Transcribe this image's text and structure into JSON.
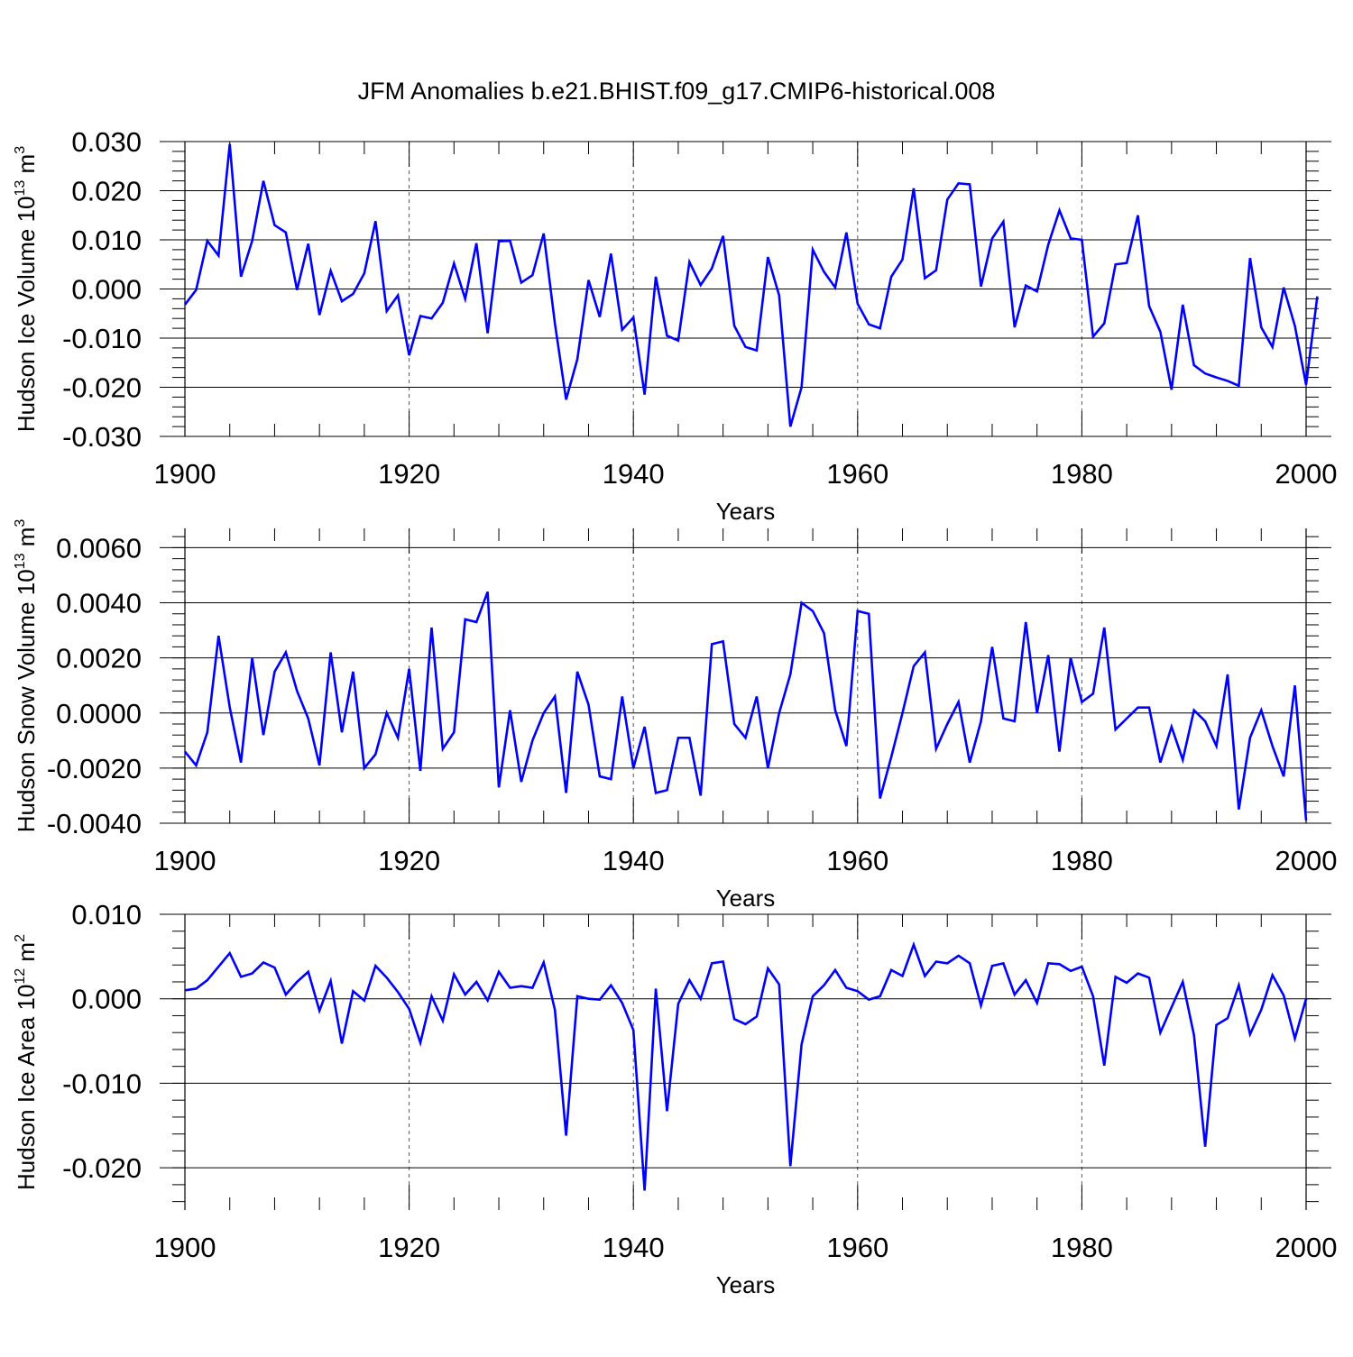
{
  "figure": {
    "title": "JFM Anomalies b.e21.BHIST.f09_g17.CMIP6-historical.008",
    "line_color": "#0000ff",
    "axis_color": "#000000",
    "grid_color": "#555555"
  },
  "chart_data": [
    {
      "type": "line",
      "ylabel": "Hudson Ice Volume 10",
      "ylabel_exp": "13",
      "ylabel_unit": " m",
      "ylabel_unit_exp": "3",
      "xlabel": "Years",
      "xlim": [
        1900,
        2000
      ],
      "ylim": [
        -0.03,
        0.03
      ],
      "x_ticks": [
        1900,
        1920,
        1940,
        1960,
        1980,
        2000
      ],
      "x_tick_labels": [
        "1900",
        "1920",
        "1940",
        "1960",
        "1980",
        "2000"
      ],
      "y_ticks": [
        -0.03,
        -0.02,
        -0.01,
        0.0,
        0.01,
        0.02,
        0.03
      ],
      "y_tick_labels": [
        "-0.030",
        "-0.020",
        "-0.010",
        "0.000",
        "0.010",
        "0.020",
        "0.030"
      ],
      "grid": "dashed vertical at 20-year intervals",
      "x_start": 1900,
      "values": [
        -0.0032,
        -0.0002,
        0.0098,
        0.0068,
        0.0295,
        0.0025,
        0.0098,
        0.022,
        0.013,
        0.0115,
        -0.0002,
        0.0092,
        -0.0053,
        0.0037,
        -0.0025,
        -0.001,
        0.0032,
        0.0138,
        -0.0045,
        -0.0013,
        -0.0135,
        -0.0055,
        -0.006,
        -0.0028,
        0.0052,
        -0.002,
        0.0093,
        -0.009,
        0.0097,
        0.0098,
        0.0013,
        0.0028,
        0.0113,
        -0.007,
        -0.0225,
        -0.0143,
        0.0018,
        -0.0057,
        0.0072,
        -0.0083,
        -0.0058,
        -0.0215,
        0.0025,
        -0.0095,
        -0.0105,
        0.0055,
        0.0008,
        0.0042,
        0.0108,
        -0.0075,
        -0.0118,
        -0.0125,
        0.0065,
        -0.0013,
        -0.028,
        -0.02,
        0.008,
        0.0035,
        0.0003,
        0.0115,
        -0.003,
        -0.0072,
        -0.008,
        0.0025,
        0.006,
        0.0205,
        0.0022,
        0.0038,
        0.0182,
        0.0215,
        0.0213,
        0.0005,
        0.0103,
        0.0137,
        -0.0078,
        0.0007,
        -0.0005,
        0.009,
        0.016,
        0.0103,
        0.01,
        -0.0097,
        -0.007,
        0.005,
        0.0053,
        0.015,
        -0.0035,
        -0.0087,
        -0.0205,
        -0.0032,
        -0.0155,
        -0.0172,
        -0.018,
        -0.0187,
        -0.0197,
        0.0063,
        -0.0078,
        -0.0118,
        0.0003,
        -0.0075,
        -0.0195,
        -0.0015
      ]
    },
    {
      "type": "line",
      "ylabel": "Hudson Snow Volume 10",
      "ylabel_exp": "13",
      "ylabel_unit": " m",
      "ylabel_unit_exp": "3",
      "xlabel": "Years",
      "xlim": [
        1900,
        2000
      ],
      "ylim": [
        -0.004,
        0.0067
      ],
      "x_ticks": [
        1900,
        1920,
        1940,
        1960,
        1980,
        2000
      ],
      "x_tick_labels": [
        "1900",
        "1920",
        "1940",
        "1960",
        "1980",
        "2000"
      ],
      "y_ticks": [
        -0.004,
        -0.002,
        0.0,
        0.002,
        0.004,
        0.006
      ],
      "y_tick_labels": [
        "-0.0040",
        "-0.0020",
        "0.0000",
        "0.0020",
        "0.0040",
        "0.0060"
      ],
      "grid": "dashed vertical at 20-year intervals",
      "x_start": 1900,
      "values": [
        -0.0014,
        -0.0019,
        -0.0007,
        0.0028,
        0.0002,
        -0.0018,
        0.002,
        -0.0008,
        0.0015,
        0.0022,
        0.0008,
        -0.0002,
        -0.0019,
        0.0022,
        -0.0007,
        0.0015,
        -0.002,
        -0.0015,
        0.0,
        -0.0009,
        0.0016,
        -0.0021,
        0.0031,
        -0.0013,
        -0.0007,
        0.0034,
        0.0033,
        0.0044,
        -0.0027,
        0.0001,
        -0.0025,
        -0.001,
        0.0,
        0.0006,
        -0.0029,
        0.0015,
        0.0003,
        -0.0023,
        -0.0024,
        0.0006,
        -0.002,
        -0.0005,
        -0.0029,
        -0.0028,
        -0.0009,
        -0.0009,
        -0.003,
        0.0025,
        0.0026,
        -0.0004,
        -0.0009,
        0.0006,
        -0.002,
        0.0,
        0.0014,
        0.004,
        0.0037,
        0.0029,
        0.0001,
        -0.0012,
        0.0037,
        0.0036,
        -0.0031,
        -0.0016,
        0.0,
        0.0017,
        0.0022,
        -0.0013,
        -0.0004,
        0.0004,
        -0.0018,
        -0.0003,
        0.0024,
        -0.0002,
        -0.0003,
        0.0033,
        0.0,
        0.0021,
        -0.0014,
        0.002,
        0.0004,
        0.0007,
        0.0031,
        -0.0006,
        -0.0002,
        0.0002,
        0.0002,
        -0.0018,
        -0.0005,
        -0.0017,
        0.0001,
        -0.0003,
        -0.0012,
        0.0014,
        -0.0035,
        -0.0009,
        0.0001,
        -0.0012,
        -0.0023,
        0.001,
        -0.0039
      ]
    },
    {
      "type": "line",
      "ylabel": "Hudson Ice Area 10",
      "ylabel_exp": "12",
      "ylabel_unit": " m",
      "ylabel_unit_exp": "2",
      "xlabel": "Years",
      "xlim": [
        1900,
        2000
      ],
      "ylim": [
        -0.025,
        0.01
      ],
      "x_ticks": [
        1900,
        1920,
        1940,
        1960,
        1980,
        2000
      ],
      "x_tick_labels": [
        "1900",
        "1920",
        "1940",
        "1960",
        "1980",
        "2000"
      ],
      "y_ticks": [
        -0.02,
        -0.01,
        0.0,
        0.01
      ],
      "y_tick_labels": [
        "-0.020",
        "-0.010",
        "0.000",
        "0.010"
      ],
      "grid": "dashed vertical at 20-year intervals",
      "x_start": 1900,
      "values": [
        0.001,
        0.0012,
        0.0022,
        0.0038,
        0.0054,
        0.0026,
        0.003,
        0.0043,
        0.0037,
        0.0005,
        0.002,
        0.0032,
        -0.0014,
        0.0021,
        -0.0053,
        0.0009,
        -0.0002,
        0.0039,
        0.0025,
        0.0008,
        -0.0012,
        -0.0052,
        0.0003,
        -0.0026,
        0.0029,
        0.0005,
        0.002,
        -0.0002,
        0.0032,
        0.0013,
        0.0015,
        0.0013,
        0.0043,
        -0.0013,
        -0.0162,
        0.0003,
        0.0,
        -0.0001,
        0.0016,
        -0.0005,
        -0.0037,
        -0.0227,
        0.0012,
        -0.0133,
        -0.0006,
        0.0022,
        0.0,
        0.0042,
        0.0044,
        -0.0024,
        -0.003,
        -0.0021,
        0.0036,
        0.0017,
        -0.0198,
        -0.0054,
        0.0003,
        0.0016,
        0.0034,
        0.0013,
        0.0009,
        -0.0001,
        0.0003,
        0.0034,
        0.0027,
        0.0064,
        0.0027,
        0.0044,
        0.0042,
        0.0051,
        0.0042,
        -0.0008,
        0.0039,
        0.0042,
        0.0005,
        0.0022,
        -0.0005,
        0.0042,
        0.0041,
        0.0033,
        0.0038,
        0.0003,
        -0.0079,
        0.0026,
        0.0019,
        0.003,
        0.0025,
        -0.004,
        -0.001,
        0.002,
        -0.0043,
        -0.0175,
        -0.0031,
        -0.0023,
        0.0016,
        -0.0042,
        -0.0013,
        0.0028,
        0.0004,
        -0.0047,
        0.0
      ]
    }
  ]
}
